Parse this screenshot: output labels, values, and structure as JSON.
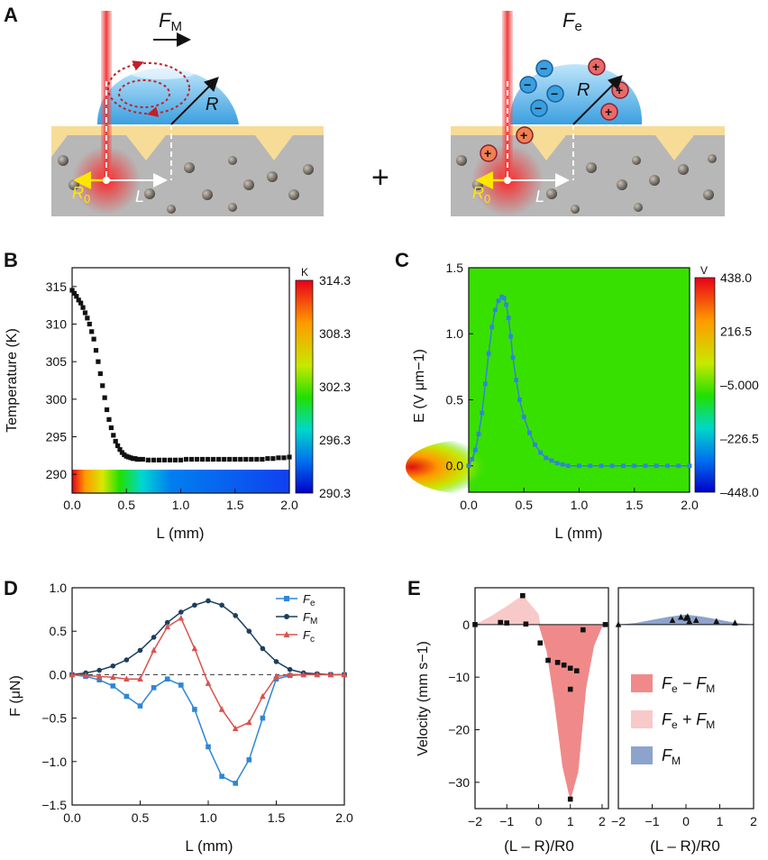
{
  "panels": {
    "A": {
      "label": "A",
      "left": {
        "force": "F",
        "force_sub": "M",
        "radius": "R",
        "r0": "R",
        "r0_sub": "0",
        "dist": "L"
      },
      "plus": "+",
      "right": {
        "force": "F",
        "force_sub": "e",
        "radius": "R",
        "r0": "R",
        "r0_sub": "0",
        "dist": "L",
        "neg_sign": "−",
        "pos_sign": "+"
      }
    },
    "B": {
      "label": "B"
    },
    "C": {
      "label": "C"
    },
    "D": {
      "label": "D"
    },
    "E": {
      "label": "E"
    }
  },
  "chart_data": [
    {
      "id": "B",
      "type": "scatter",
      "xlabel": "L (mm)",
      "ylabel": "Temperature (K)",
      "xlim": [
        0,
        2.0
      ],
      "ylim": [
        287.5,
        317.5
      ],
      "xticks": [
        "0.0",
        "0.5",
        "1.0",
        "1.5",
        "2.0"
      ],
      "yticks": [
        "290",
        "295",
        "300",
        "305",
        "310",
        "315"
      ],
      "x": [
        0,
        0.02,
        0.04,
        0.06,
        0.08,
        0.1,
        0.12,
        0.14,
        0.16,
        0.18,
        0.2,
        0.22,
        0.24,
        0.26,
        0.28,
        0.3,
        0.32,
        0.34,
        0.36,
        0.38,
        0.4,
        0.42,
        0.44,
        0.46,
        0.48,
        0.5,
        0.52,
        0.54,
        0.56,
        0.58,
        0.6,
        0.62,
        0.65,
        0.7,
        0.75,
        0.8,
        0.85,
        0.9,
        0.95,
        1.0,
        1.05,
        1.1,
        1.15,
        1.2,
        1.25,
        1.3,
        1.35,
        1.4,
        1.45,
        1.5,
        1.55,
        1.6,
        1.65,
        1.7,
        1.75,
        1.8,
        1.85,
        1.9,
        1.95,
        2.0
      ],
      "y": [
        314.5,
        314.1,
        313.7,
        313.2,
        312.8,
        312.2,
        311.5,
        310.8,
        310.0,
        309.0,
        308.0,
        306.5,
        305.0,
        303.4,
        301.8,
        300.2,
        298.6,
        297.3,
        296.2,
        295.2,
        294.4,
        293.8,
        293.3,
        292.9,
        292.6,
        292.4,
        292.3,
        292.2,
        292.1,
        292.1,
        292.0,
        292.0,
        292.0,
        291.9,
        291.9,
        291.9,
        291.9,
        291.9,
        291.9,
        291.9,
        292.0,
        292.0,
        292.0,
        292.0,
        292.0,
        292.0,
        292.0,
        292.0,
        292.0,
        292.0,
        292.0,
        292.0,
        292.0,
        292.0,
        292.0,
        292.1,
        292.1,
        292.2,
        292.2,
        292.3
      ],
      "colorbar": {
        "unit": "K",
        "ticks": [
          "314.3",
          "308.3",
          "302.3",
          "296.3",
          "290.3"
        ]
      }
    },
    {
      "id": "C",
      "type": "line",
      "xlabel": "L (mm)",
      "ylabel": "E (V μm−1)",
      "xlim": [
        0,
        2.0
      ],
      "ylim": [
        -0.2,
        1.5
      ],
      "xticks": [
        "0.0",
        "0.5",
        "1.0",
        "1.5",
        "2.0"
      ],
      "yticks": [
        "0.0",
        "0.5",
        "1.0",
        "1.5"
      ],
      "x": [
        0,
        0.03,
        0.06,
        0.09,
        0.12,
        0.15,
        0.18,
        0.21,
        0.24,
        0.27,
        0.3,
        0.32,
        0.34,
        0.36,
        0.38,
        0.4,
        0.43,
        0.46,
        0.5,
        0.55,
        0.6,
        0.65,
        0.7,
        0.75,
        0.8,
        0.85,
        0.9,
        1.0,
        1.1,
        1.2,
        1.3,
        1.4,
        1.5,
        1.6,
        1.7,
        1.8,
        1.9,
        2.0
      ],
      "y": [
        0.0,
        0.05,
        0.12,
        0.24,
        0.4,
        0.62,
        0.85,
        1.05,
        1.18,
        1.25,
        1.28,
        1.27,
        1.22,
        1.12,
        0.98,
        0.82,
        0.65,
        0.5,
        0.37,
        0.25,
        0.16,
        0.1,
        0.06,
        0.04,
        0.02,
        0.01,
        0.0,
        0.0,
        0.0,
        0.0,
        0.0,
        0.0,
        0.0,
        0.0,
        0.0,
        0.0,
        0.0,
        0.0
      ],
      "colorbar": {
        "unit": "V",
        "ticks": [
          "438.0",
          "216.5",
          "–5.000",
          "–226.5",
          "–448.0"
        ]
      }
    },
    {
      "id": "D",
      "type": "line",
      "xlabel": "L (mm)",
      "ylabel": "F (μN)",
      "xlim": [
        0,
        2.0
      ],
      "ylim": [
        -1.5,
        1.0
      ],
      "xticks": [
        "0.0",
        "0.5",
        "1.0",
        "1.5",
        "2.0"
      ],
      "yticks": [
        "−1.5",
        "−1.0",
        "−0.5",
        "0.0",
        "0.5",
        "1.0"
      ],
      "x": [
        0,
        0.1,
        0.2,
        0.3,
        0.4,
        0.5,
        0.6,
        0.7,
        0.8,
        0.9,
        1.0,
        1.1,
        1.2,
        1.3,
        1.4,
        1.5,
        1.6,
        1.7,
        1.8,
        1.9,
        2.0
      ],
      "series": [
        {
          "name": "Fe",
          "label": "F",
          "sub": "e",
          "color": "#2f86d6",
          "marker": "square",
          "values": [
            0.0,
            -0.02,
            -0.06,
            -0.13,
            -0.25,
            -0.36,
            -0.15,
            -0.05,
            -0.12,
            -0.4,
            -0.83,
            -1.17,
            -1.25,
            -0.98,
            -0.5,
            -0.05,
            -0.01,
            0.0,
            0.0,
            0.0,
            0.0
          ]
        },
        {
          "name": "FM",
          "label": "F",
          "sub": "M",
          "color": "#1c3f5c",
          "marker": "circle",
          "values": [
            0.0,
            0.02,
            0.05,
            0.1,
            0.17,
            0.28,
            0.43,
            0.6,
            0.72,
            0.8,
            0.85,
            0.8,
            0.68,
            0.5,
            0.3,
            0.15,
            0.06,
            0.02,
            0.01,
            0.0,
            0.0
          ]
        },
        {
          "name": "Fc",
          "label": "F",
          "sub": "c",
          "color": "#d9534f",
          "marker": "triangle",
          "values": [
            0.0,
            -0.01,
            -0.02,
            -0.03,
            -0.05,
            -0.05,
            0.28,
            0.55,
            0.65,
            0.3,
            -0.1,
            -0.4,
            -0.62,
            -0.55,
            -0.25,
            -0.02,
            0.0,
            0.0,
            0.0,
            0.0,
            0.0
          ]
        }
      ]
    },
    {
      "id": "E",
      "type": "area",
      "ylabel": "Velocity (mm s−1)",
      "ylim": [
        -35,
        7
      ],
      "yticks": [
        "0",
        "−10",
        "−20",
        "−30"
      ],
      "left": {
        "xlabel": "(L – R)/R0",
        "xlim": [
          -2,
          2.2
        ],
        "xticks": [
          "−2",
          "−1",
          "0",
          "1",
          "2"
        ],
        "points": {
          "x": [
            -2.0,
            -1.2,
            -1.0,
            -0.5,
            -0.4,
            0.05,
            0.3,
            0.6,
            0.8,
            1.0,
            1.0,
            1.2,
            1.4,
            2.1,
            1.0
          ],
          "y": [
            0,
            0.4,
            0.3,
            5.5,
            0.1,
            -3.5,
            -6.8,
            -7.2,
            -7.7,
            -8.3,
            -12.3,
            -8.8,
            -1.0,
            0,
            -33.2
          ]
        },
        "pink_area": {
          "x": [
            -2,
            -1.5,
            -1,
            -0.5,
            0,
            0.05
          ],
          "y": [
            0,
            1.6,
            3.5,
            5.6,
            2,
            0
          ]
        },
        "red_area": {
          "x": [
            0,
            0.25,
            0.5,
            0.75,
            1.0,
            1.25,
            1.5,
            1.75,
            2.0,
            2.1
          ],
          "y": [
            0,
            -5,
            -15,
            -27,
            -33.5,
            -28,
            -12,
            -4,
            -0.5,
            0
          ]
        }
      },
      "right": {
        "xlabel": "(L – R)/R0",
        "xlim": [
          -2,
          2
        ],
        "xticks": [
          "−2",
          "−1",
          "0",
          "1",
          "2"
        ],
        "points": {
          "x": [
            -2.0,
            -0.4,
            -0.15,
            0.0,
            0.05,
            0.1,
            0.3,
            0.9,
            1.45
          ],
          "y": [
            0,
            0.8,
            1.4,
            1.2,
            1.5,
            0.6,
            0.8,
            0.6,
            0.3
          ]
        },
        "blue_area": {
          "x": [
            -2,
            -1.5,
            -1,
            -0.5,
            0,
            0.5,
            1,
            1.5,
            2
          ],
          "y": [
            0,
            0.3,
            0.9,
            1.5,
            1.9,
            1.5,
            0.9,
            0.3,
            0
          ]
        }
      },
      "legend": [
        {
          "label": "F",
          "sub1": "e",
          "op": " − F",
          "sub2": "M",
          "color": "#f08a8a"
        },
        {
          "label": "F",
          "sub1": "e",
          "op": " + F",
          "sub2": "M",
          "color": "#f8c9c9"
        },
        {
          "label": "F",
          "sub1": "M",
          "op": "",
          "sub2": "",
          "color": "#8da3cc"
        }
      ]
    }
  ]
}
